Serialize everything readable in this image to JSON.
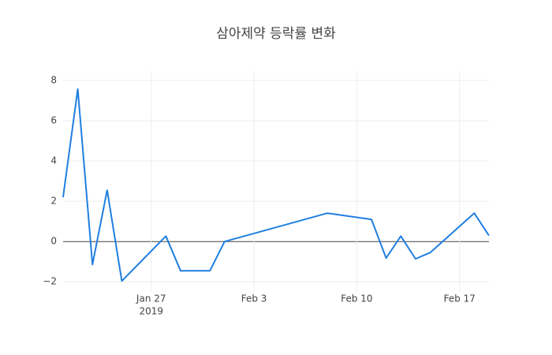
{
  "chart_data": {
    "type": "line",
    "title": "삼아제약 등락률 변화",
    "x": [
      "2019-01-21",
      "2019-01-22",
      "2019-01-23",
      "2019-01-24",
      "2019-01-25",
      "2019-01-28",
      "2019-01-29",
      "2019-01-31",
      "2019-02-01",
      "2019-02-08",
      "2019-02-11",
      "2019-02-12",
      "2019-02-13",
      "2019-02-14",
      "2019-02-15",
      "2019-02-18",
      "2019-02-19"
    ],
    "series": [
      {
        "name": "등락률",
        "color": "#1f7fe0",
        "values": [
          2.2,
          7.57,
          -1.14,
          2.55,
          -1.96,
          0.27,
          -1.45,
          -1.45,
          0.0,
          1.41,
          1.1,
          -0.82,
          0.27,
          -0.86,
          -0.55,
          1.41,
          0.3
        ]
      }
    ],
    "xlim": [
      "2019-01-21",
      "2019-02-19"
    ],
    "xticks": [
      {
        "value": "2019-01-27",
        "label": "Jan 27"
      },
      {
        "value": "2019-02-03",
        "label": "Feb 3"
      },
      {
        "value": "2019-02-10",
        "label": "Feb 10"
      },
      {
        "value": "2019-02-17",
        "label": "Feb 17"
      }
    ],
    "x_year": {
      "value": "2019-01-27",
      "label": "2019"
    },
    "ylim": [
      -2.5,
      8.47
    ],
    "yticks": [
      {
        "value": -2,
        "label": "−2"
      },
      0,
      2,
      4,
      6,
      8
    ],
    "grid": true,
    "show_legend": false
  }
}
